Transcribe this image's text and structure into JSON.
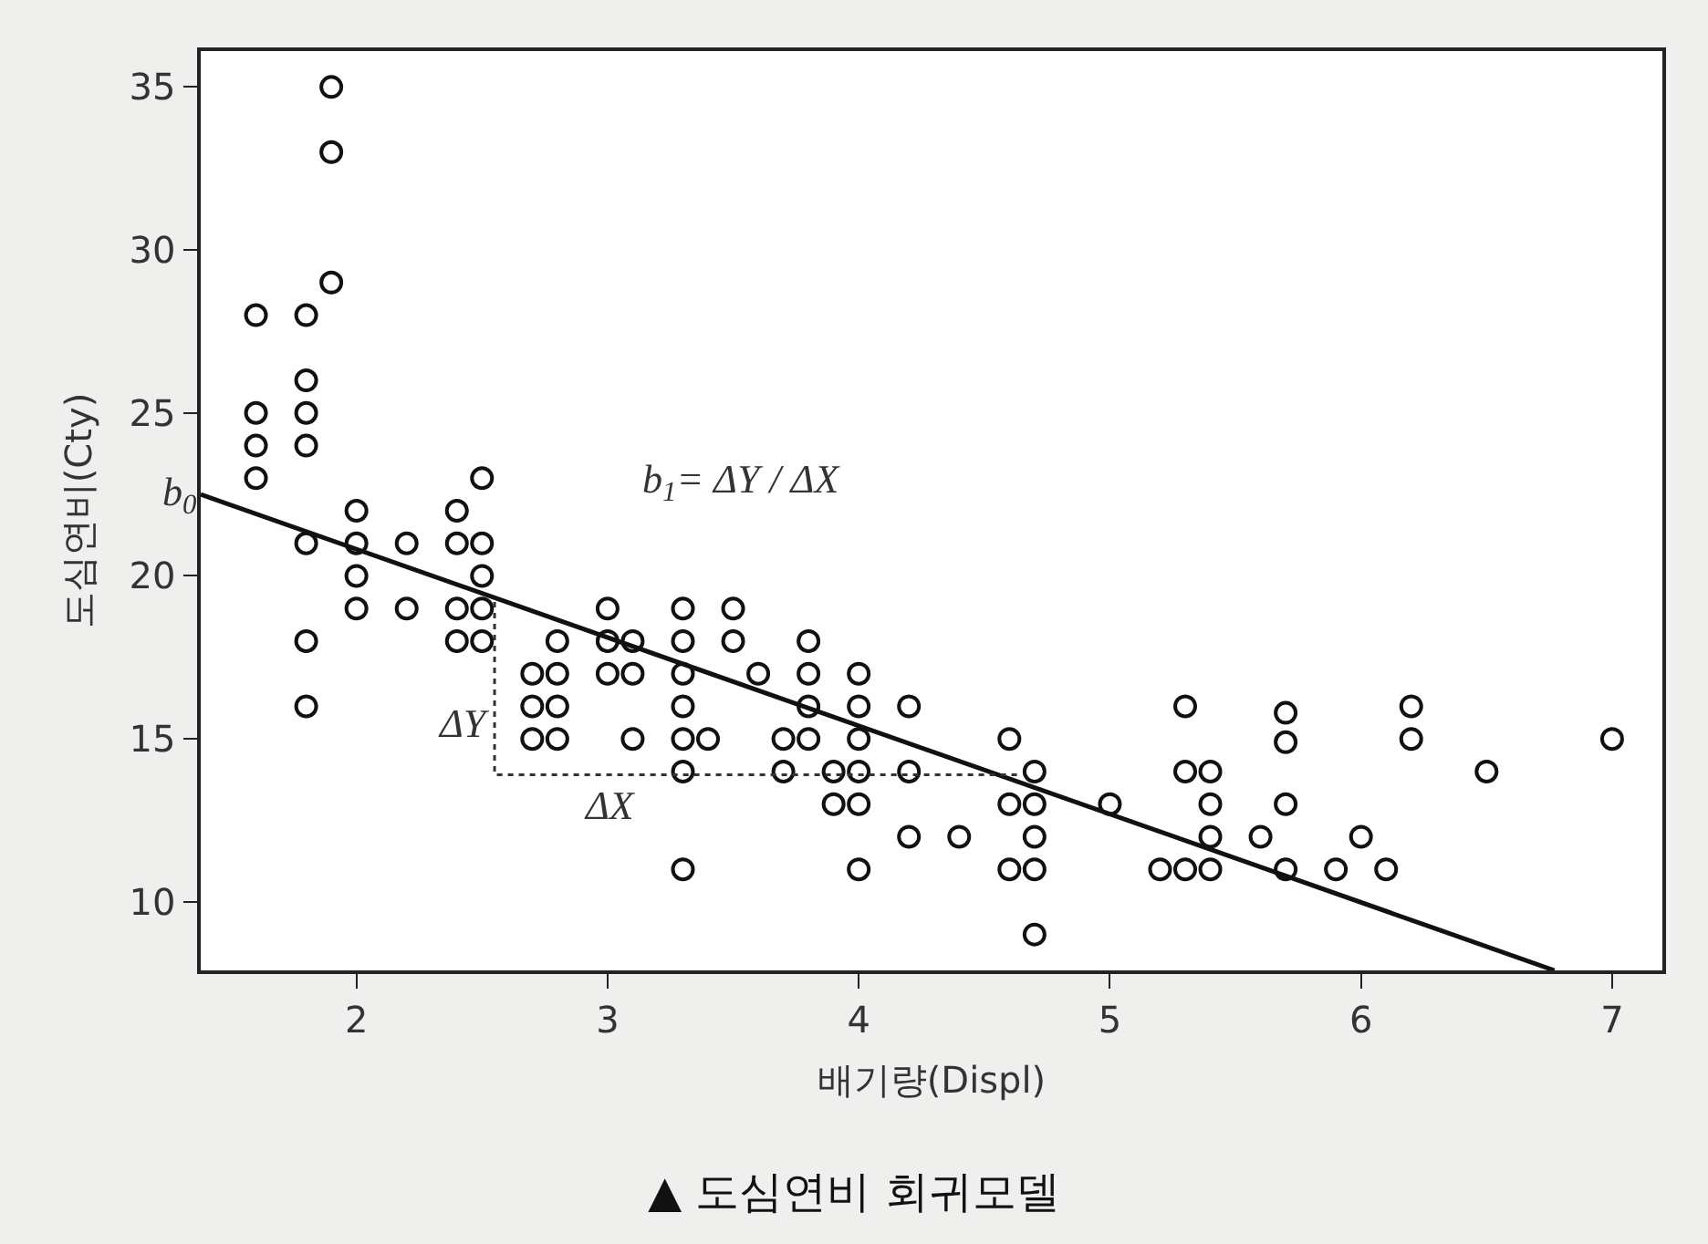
{
  "chart_data": {
    "type": "scatter",
    "title": "▲ 도심연비 회귀모델",
    "xlabel": "배기량(Displ)",
    "ylabel": "도심연비(Cty)",
    "xlim": [
      1.38,
      7.2
    ],
    "ylim": [
      7.9,
      36.1
    ],
    "xticks": [
      2,
      3,
      4,
      5,
      6,
      7
    ],
    "yticks": [
      10,
      15,
      20,
      25,
      30,
      35
    ],
    "series": [
      {
        "marker": "circle",
        "color": "#111111",
        "x": [
          1.6,
          1.6,
          1.6,
          1.6,
          1.8,
          1.8,
          1.8,
          1.8,
          1.8,
          1.8,
          1.8,
          1.9,
          1.9,
          1.9,
          2.0,
          2.0,
          2.0,
          2.0,
          2.2,
          2.2,
          2.4,
          2.4,
          2.4,
          2.4,
          2.5,
          2.5,
          2.5,
          2.5,
          2.5,
          2.7,
          2.7,
          2.7,
          2.8,
          2.8,
          2.8,
          2.8,
          3.0,
          3.0,
          3.0,
          3.1,
          3.1,
          3.1,
          3.3,
          3.3,
          3.3,
          3.3,
          3.3,
          3.3,
          3.3,
          3.4,
          3.5,
          3.5,
          3.6,
          3.7,
          3.7,
          3.8,
          3.8,
          3.8,
          3.8,
          3.9,
          3.9,
          4.0,
          4.0,
          4.0,
          4.0,
          4.0,
          4.0,
          4.2,
          4.2,
          4.2,
          4.4,
          4.6,
          4.6,
          4.6,
          4.7,
          4.7,
          4.7,
          4.7,
          4.7,
          5.0,
          5.2,
          5.3,
          5.3,
          5.3,
          5.4,
          5.4,
          5.4,
          5.4,
          5.6,
          5.7,
          5.7,
          5.7,
          5.7,
          5.9,
          6.0,
          6.1,
          6.2,
          6.2,
          6.5,
          7.0
        ],
        "values": [
          28,
          25,
          24,
          23,
          28,
          26,
          25,
          24,
          21,
          18,
          16,
          35,
          33,
          29,
          22,
          21,
          20,
          19,
          21,
          19,
          22,
          21,
          19,
          18,
          23,
          21,
          20,
          19,
          18,
          17,
          16,
          15,
          18,
          17,
          16,
          15,
          19,
          18,
          17,
          18,
          17,
          15,
          19,
          18,
          17,
          16,
          15,
          14,
          11,
          15,
          19,
          18,
          17,
          15,
          14,
          18,
          17,
          16,
          15,
          14,
          13,
          17,
          16,
          15,
          14,
          13,
          11,
          16,
          14,
          12,
          12,
          15,
          13,
          11,
          14,
          13,
          12,
          11,
          9,
          13,
          11,
          16,
          14,
          11,
          14,
          13,
          12,
          11,
          12,
          15.8,
          14.9,
          13,
          11,
          11,
          12,
          11,
          16,
          15,
          14,
          15
        ]
      },
      {
        "type": "line",
        "color": "#111111",
        "line_style": "solid",
        "x": [
          1.38,
          6.77
        ],
        "values": [
          22.5,
          7.9
        ]
      },
      {
        "type": "line",
        "color": "#333333",
        "line_style": "dotted",
        "x": [
          2.55,
          2.55,
          4.65
        ],
        "values": [
          19.2,
          13.9,
          13.9
        ]
      }
    ],
    "annotations": [
      {
        "text": "b$_{0}$",
        "x": 1.38,
        "y": 22.5
      },
      "b$_{1}$= ΔY / ΔX",
      "ΔY",
      "ΔX"
    ]
  }
}
